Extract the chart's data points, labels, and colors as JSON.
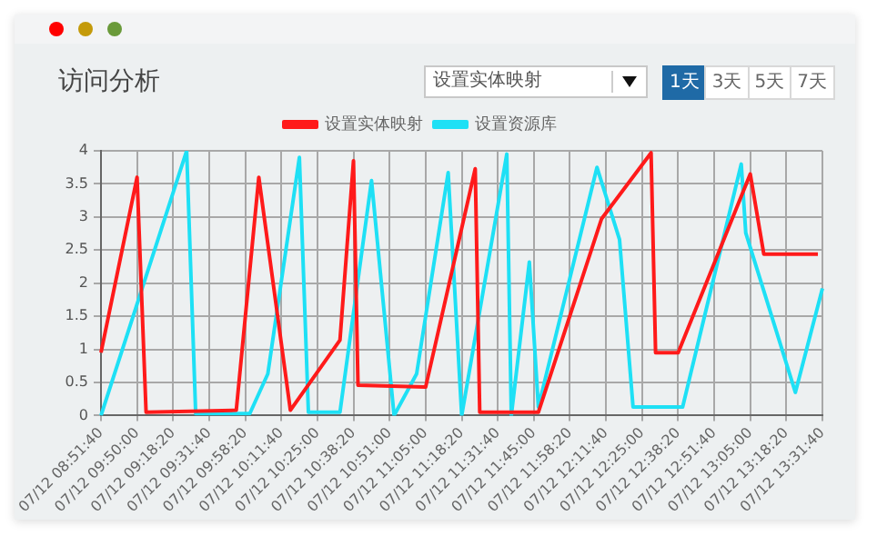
{
  "chart_data": {
    "type": "line",
    "title": "访问分析",
    "annotations": [
      "设置实体映射",
      "1天",
      "3天",
      "5天",
      "7天"
    ],
    "categories": [
      "07/12 08:51:40",
      null,
      null,
      null,
      null,
      null,
      null,
      null,
      "07/12 09:50:00",
      null,
      null,
      null,
      null,
      null,
      null,
      null,
      "07/12 09:18:20",
      null,
      null,
      null,
      null,
      null,
      null,
      null,
      "07/12 09:31:40",
      null,
      null,
      null,
      null,
      null,
      null,
      null,
      "07/12 09:58:20",
      null,
      null,
      null,
      null,
      null,
      null,
      null,
      "07/12 10:11:40",
      null,
      null,
      null,
      null,
      null,
      null,
      null,
      "07/12 10:25:00",
      null,
      null,
      null,
      null,
      null,
      null,
      null,
      "07/12 10:38:20",
      null,
      null,
      null,
      null,
      null,
      null,
      null,
      "07/12 10:51:00",
      null,
      null,
      null,
      null,
      null,
      null,
      null,
      "07/12 11:05:00",
      null,
      null,
      null,
      null,
      null,
      null,
      null,
      "07/12 11:18:20",
      null,
      null,
      null,
      null,
      null,
      null,
      null,
      "07/12 11:31:40",
      null,
      null,
      null,
      null,
      null,
      null,
      null,
      "07/12 11:45:00",
      null,
      null,
      null,
      null,
      null,
      null,
      null,
      "07/12 11:58:20",
      null,
      null,
      null,
      null,
      null,
      null,
      null,
      "07/12 12:11:40",
      null,
      null,
      null,
      null,
      null,
      null,
      null,
      "07/12 12:25:00",
      null,
      null,
      null,
      null,
      null,
      null,
      null,
      "07/12 12:38:20",
      null,
      null,
      null,
      null,
      null,
      null,
      null,
      "07/12 12:51:40",
      null,
      null,
      null,
      null,
      null,
      null,
      null,
      "07/12 13:05:00",
      null,
      null,
      null,
      null,
      null,
      null,
      null,
      "07/12 13:18:20",
      null,
      null,
      null,
      null,
      null,
      null,
      null,
      "07/12 13:31:40"
    ],
    "ylim": [
      0,
      4
    ],
    "yticks": [
      0,
      0.5,
      1,
      1.5,
      2,
      2.5,
      3,
      3.5,
      4
    ],
    "grid": true,
    "legend": "top",
    "marker": "none",
    "line_style": "solid",
    "series": [
      {
        "name": "设置实体映射",
        "color": "#ff1a1a",
        "values": [
          0.95,
          null,
          null,
          null,
          null,
          null,
          null,
          null,
          3.6,
          null,
          0.05,
          null,
          null,
          null,
          null,
          null,
          null,
          null,
          null,
          null,
          null,
          null,
          null,
          null,
          null,
          null,
          null,
          null,
          null,
          null,
          0.08,
          null,
          null,
          null,
          null,
          3.6,
          null,
          null,
          null,
          null,
          null,
          null,
          0.08,
          null,
          null,
          null,
          null,
          null,
          null,
          null,
          null,
          null,
          null,
          1.14,
          null,
          null,
          3.85,
          0.46,
          null,
          null,
          null,
          null,
          null,
          null,
          null,
          null,
          null,
          null,
          null,
          null,
          null,
          null,
          0.43,
          null,
          null,
          null,
          null,
          null,
          null,
          null,
          null,
          null,
          null,
          3.73,
          0.05,
          null,
          null,
          null,
          null,
          null,
          null,
          null,
          null,
          null,
          null,
          null,
          null,
          0.05,
          null,
          null,
          null,
          null,
          null,
          null,
          null,
          null,
          null,
          null,
          null,
          null,
          null,
          2.97,
          null,
          null,
          null,
          null,
          null,
          null,
          null,
          null,
          null,
          null,
          3.97,
          0.95,
          null,
          null,
          null,
          null,
          0.95,
          null,
          null,
          null,
          null,
          null,
          null,
          null,
          null,
          null,
          null,
          null,
          null,
          null,
          null,
          null,
          3.65,
          null,
          null,
          2.44,
          null,
          null,
          null,
          null,
          null,
          null,
          null,
          null,
          null,
          null,
          null,
          2.44,
          null
        ]
      },
      {
        "name": "设置资源库",
        "color": "#1ee0f5",
        "values": [
          0,
          null,
          null,
          null,
          null,
          null,
          null,
          null,
          null,
          null,
          null,
          null,
          null,
          null,
          null,
          null,
          null,
          null,
          null,
          4,
          null,
          0.03,
          null,
          null,
          null,
          null,
          null,
          null,
          null,
          null,
          null,
          null,
          null,
          0.03,
          null,
          null,
          null,
          0.63,
          null,
          null,
          null,
          null,
          null,
          null,
          3.9,
          null,
          0.05,
          null,
          null,
          null,
          null,
          null,
          null,
          0.05,
          null,
          null,
          null,
          null,
          null,
          null,
          3.55,
          null,
          null,
          null,
          null,
          0,
          null,
          null,
          null,
          null,
          0.63,
          null,
          null,
          null,
          null,
          null,
          null,
          3.67,
          null,
          null,
          0,
          null,
          null,
          null,
          null,
          null,
          null,
          null,
          null,
          null,
          3.95,
          0,
          null,
          null,
          null,
          2.32,
          null,
          0.13,
          null,
          null,
          null,
          null,
          null,
          null,
          null,
          null,
          null,
          null,
          null,
          null,
          3.75,
          null,
          null,
          null,
          null,
          2.66,
          null,
          null,
          0.13,
          null,
          null,
          null,
          null,
          null,
          null,
          null,
          null,
          null,
          null,
          0.13,
          null,
          null,
          null,
          null,
          null,
          null,
          null,
          null,
          null,
          null,
          null,
          null,
          3.8,
          2.76,
          null,
          null,
          null,
          null,
          null,
          null,
          null,
          null,
          null,
          null,
          0.35,
          null,
          null,
          null,
          null,
          null,
          1.92
        ]
      }
    ]
  }
}
